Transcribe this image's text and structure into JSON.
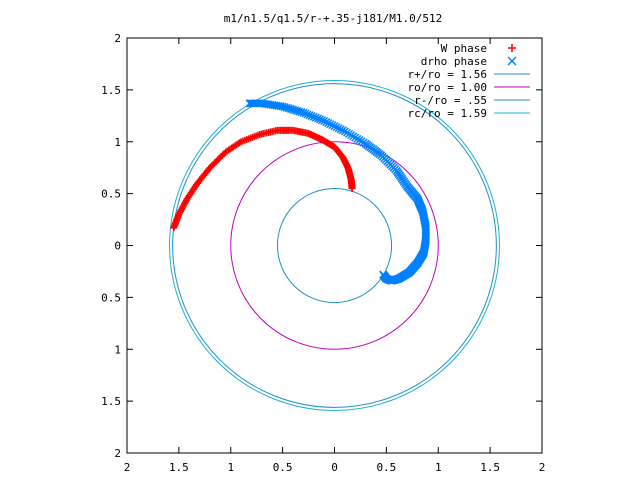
{
  "chart_data": {
    "type": "scatter",
    "title": "m1/n1.5/q1.5/r-+.35-j181/M1.0/512",
    "xlabel": "",
    "ylabel": "",
    "xlim": [
      2,
      -2
    ],
    "ylim": [
      -2,
      2
    ],
    "x_ticks": [
      2,
      1.5,
      1,
      0.5,
      0,
      0.5,
      1,
      1.5,
      2
    ],
    "y_ticks": [
      2,
      1.5,
      1,
      0.5,
      0,
      0.5,
      1,
      1.5,
      2
    ],
    "grid": false,
    "legend_position": "top-right",
    "colors": {
      "w_phase": "#ff0000",
      "drho_phase": "#0080ff",
      "r_plus": "#1e90c8",
      "ro": "#c000c0",
      "r_minus": "#1e90c8",
      "rc": "#20b0d0"
    },
    "series": [
      {
        "name": "W phase",
        "kind": "points",
        "marker": "+",
        "points": [
          [
            1.55,
            0.17
          ],
          [
            1.5,
            0.3
          ],
          [
            1.42,
            0.45
          ],
          [
            1.32,
            0.6
          ],
          [
            1.2,
            0.75
          ],
          [
            1.05,
            0.9
          ],
          [
            0.9,
            1.0
          ],
          [
            0.72,
            1.07
          ],
          [
            0.55,
            1.11
          ],
          [
            0.4,
            1.11
          ],
          [
            0.25,
            1.08
          ],
          [
            0.12,
            1.02
          ],
          [
            0.0,
            0.95
          ],
          [
            -0.08,
            0.85
          ],
          [
            -0.13,
            0.75
          ],
          [
            -0.16,
            0.64
          ],
          [
            -0.17,
            0.55
          ]
        ]
      },
      {
        "name": "drho phase",
        "kind": "points",
        "marker": "x",
        "points": [
          [
            0.82,
            1.37
          ],
          [
            0.7,
            1.37
          ],
          [
            0.5,
            1.34
          ],
          [
            0.3,
            1.28
          ],
          [
            0.1,
            1.2
          ],
          [
            -0.1,
            1.1
          ],
          [
            -0.3,
            0.98
          ],
          [
            -0.45,
            0.87
          ],
          [
            -0.6,
            0.72
          ],
          [
            -0.7,
            0.57
          ],
          [
            -0.8,
            0.45
          ],
          [
            -0.85,
            0.33
          ],
          [
            -0.88,
            0.18
          ],
          [
            -0.88,
            0.05
          ],
          [
            -0.86,
            -0.07
          ],
          [
            -0.8,
            -0.17
          ],
          [
            -0.72,
            -0.26
          ],
          [
            -0.62,
            -0.32
          ],
          [
            -0.55,
            -0.34
          ],
          [
            -0.5,
            -0.32
          ],
          [
            -0.47,
            -0.28
          ]
        ]
      },
      {
        "name": "r+/ro = 1.56",
        "kind": "circle",
        "radius": 1.56
      },
      {
        "name": "ro/ro = 1.00",
        "kind": "circle",
        "radius": 1.0
      },
      {
        "name": "r-/ro = .55",
        "kind": "circle",
        "radius": 0.55
      },
      {
        "name": "rc/ro = 1.59",
        "kind": "circle",
        "radius": 1.59
      }
    ]
  }
}
